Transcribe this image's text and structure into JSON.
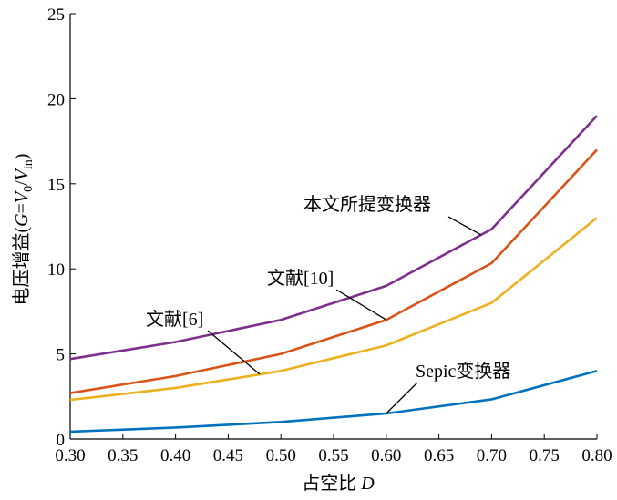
{
  "chart_data": {
    "type": "line",
    "x": [
      0.3,
      0.4,
      0.5,
      0.6,
      0.7,
      0.8
    ],
    "xlim": [
      0.3,
      0.8
    ],
    "ylim": [
      0,
      25
    ],
    "xticks": [
      "0.30",
      "0.35",
      "0.40",
      "0.45",
      "0.50",
      "0.55",
      "0.60",
      "0.65",
      "0.70",
      "0.75",
      "0.80"
    ],
    "yticks": [
      "0",
      "5",
      "10",
      "15",
      "20",
      "25"
    ],
    "xlabel": "占空比 D",
    "ylabel": "电压增益(G=V0/Vin)",
    "grid": false,
    "series": [
      {
        "name": "本文所提变换器",
        "color": "#7E2F8E",
        "values": [
          4.7,
          5.7,
          7.0,
          9.0,
          12.33,
          19.0
        ]
      },
      {
        "name": "文献[10]",
        "color": "#D95319",
        "values": [
          2.7,
          3.7,
          5.0,
          7.0,
          10.33,
          17.0
        ]
      },
      {
        "name": "文献[6]",
        "color": "#EDB120",
        "values": [
          2.3,
          3.0,
          4.0,
          5.5,
          8.0,
          13.0
        ]
      },
      {
        "name": "Sepic变换器",
        "color": "#0072BD",
        "values": [
          0.43,
          0.67,
          1.0,
          1.5,
          2.33,
          4.0
        ]
      }
    ],
    "annotations": [
      {
        "text": "本文所提变换器",
        "series": 0,
        "at_x": 0.69
      },
      {
        "text": "文献[10]",
        "series": 1,
        "at_x": 0.6
      },
      {
        "text": "文献[6]",
        "series": 2,
        "at_x": 0.48
      },
      {
        "text": "Sepic变换器",
        "series": 3,
        "at_x": 0.6
      }
    ]
  }
}
